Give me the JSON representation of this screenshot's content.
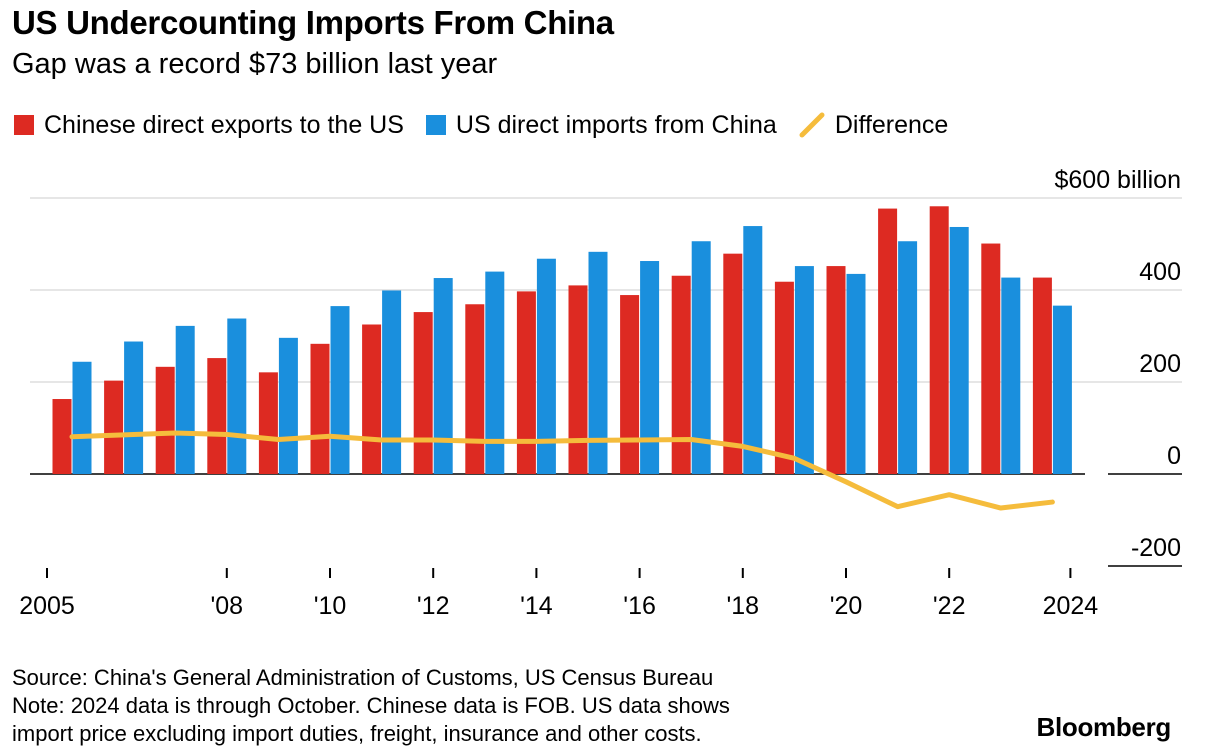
{
  "title": "US Undercounting Imports From China",
  "subtitle": "Gap was a record $73 billion last year",
  "legend": {
    "exports_label": "Chinese direct exports to the US",
    "imports_label": "US direct imports from China",
    "difference_label": "Difference"
  },
  "colors": {
    "exports": "#dd2a22",
    "imports": "#1a8fdd",
    "difference": "#f5bc3c",
    "gridline": "#dddddd",
    "baseline": "#000000"
  },
  "chart_data": {
    "type": "bar",
    "title": "US Undercounting Imports From China",
    "subtitle": "Gap was a record $73 billion last year",
    "xlabel": "",
    "ylabel": "",
    "ylim": [
      -200,
      600
    ],
    "y_axis_label_top": "$600 billion",
    "y_ticks": [
      {
        "value": 600,
        "label": "$600 billion"
      },
      {
        "value": 400,
        "label": "400"
      },
      {
        "value": 200,
        "label": "200"
      },
      {
        "value": 0,
        "label": "0"
      },
      {
        "value": -200,
        "label": "-200"
      }
    ],
    "categories": [
      "2005",
      "2006",
      "2007",
      "2008",
      "2009",
      "2010",
      "2011",
      "2012",
      "2013",
      "2014",
      "2015",
      "2016",
      "2017",
      "2018",
      "2019",
      "2020",
      "2021",
      "2022",
      "2023",
      "2024"
    ],
    "x_tick_labels": [
      {
        "category": "2005",
        "label": "2005"
      },
      {
        "category": "2008",
        "label": "'08"
      },
      {
        "category": "2010",
        "label": "'10"
      },
      {
        "category": "2012",
        "label": "'12"
      },
      {
        "category": "2014",
        "label": "'14"
      },
      {
        "category": "2016",
        "label": "'16"
      },
      {
        "category": "2018",
        "label": "'18"
      },
      {
        "category": "2020",
        "label": "'20"
      },
      {
        "category": "2022",
        "label": "'22"
      },
      {
        "category": "2024",
        "label": "2024"
      }
    ],
    "series": [
      {
        "name": "Chinese direct exports to the US",
        "type": "bar",
        "values": [
          163,
          203,
          233,
          252,
          221,
          283,
          325,
          352,
          369,
          397,
          410,
          389,
          431,
          479,
          418,
          452,
          577,
          582,
          501,
          427
        ]
      },
      {
        "name": "US direct imports from China",
        "type": "bar",
        "values": [
          244,
          288,
          322,
          338,
          296,
          365,
          399,
          426,
          440,
          468,
          483,
          463,
          506,
          539,
          452,
          435,
          506,
          537,
          427,
          366
        ]
      },
      {
        "name": "Difference",
        "type": "line",
        "values": [
          81,
          85,
          89,
          86,
          75,
          82,
          74,
          74,
          71,
          71,
          73,
          74,
          75,
          60,
          34,
          -17,
          -71,
          -45,
          -74,
          -61
        ]
      }
    ]
  },
  "footer": {
    "source": "Source: China's General Administration of Customs, US Census Bureau",
    "note_line1": "Note: 2024 data is through October. Chinese data is FOB. US data shows",
    "note_line2": "import price excluding import duties, freight, insurance and other costs."
  },
  "brand": "Bloomberg"
}
